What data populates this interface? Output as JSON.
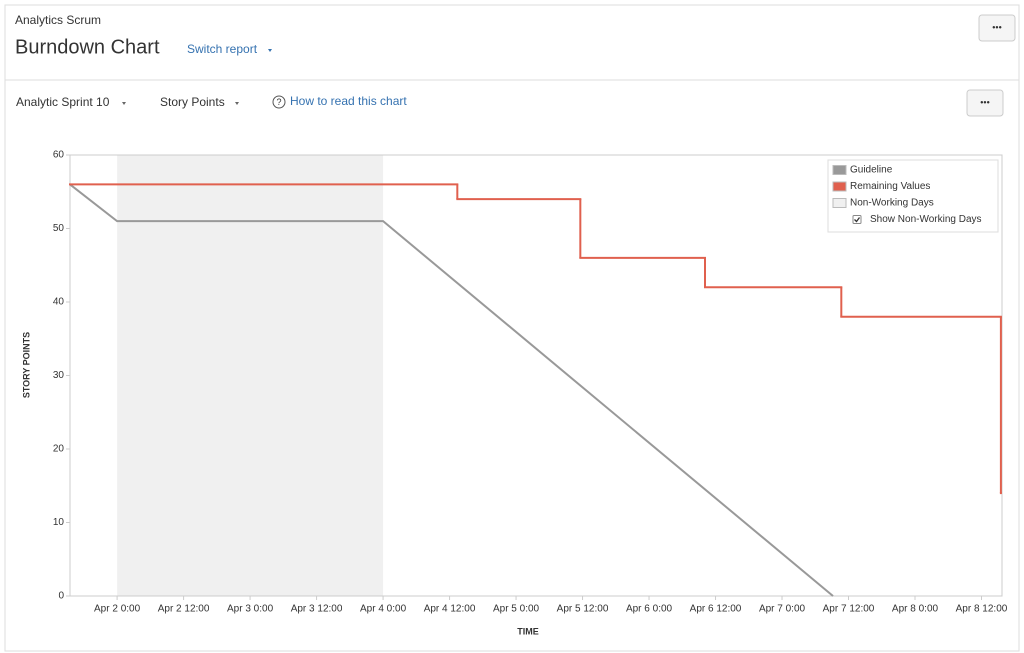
{
  "header": {
    "project": "Analytics Scrum",
    "title": "Burndown Chart",
    "switch": "Switch report",
    "more": "•••"
  },
  "toolbar": {
    "sprint": "Analytic Sprint 10",
    "statistic": "Story Points",
    "help_icon": "?",
    "help": "How to read this chart",
    "more": "•••"
  },
  "chart_data": {
    "type": "line",
    "x_label": "TIME",
    "y_label": "STORY POINTS",
    "xlim": [
      -8.5,
      159.7
    ],
    "xticks": [
      {
        "value": 0,
        "label": "Apr 2 0:00"
      },
      {
        "value": 12,
        "label": "Apr 2 12:00"
      },
      {
        "value": 24,
        "label": "Apr 3 0:00"
      },
      {
        "value": 36,
        "label": "Apr 3 12:00"
      },
      {
        "value": 48,
        "label": "Apr 4 0:00"
      },
      {
        "value": 60,
        "label": "Apr 4 12:00"
      },
      {
        "value": 72,
        "label": "Apr 5 0:00"
      },
      {
        "value": 84,
        "label": "Apr 5 12:00"
      },
      {
        "value": 96,
        "label": "Apr 6 0:00"
      },
      {
        "value": 108,
        "label": "Apr 6 12:00"
      },
      {
        "value": 120,
        "label": "Apr 7 0:00"
      },
      {
        "value": 132,
        "label": "Apr 7 12:00"
      },
      {
        "value": 144,
        "label": "Apr 8 0:00"
      },
      {
        "value": 156,
        "label": "Apr 8 12:00"
      }
    ],
    "ylim": [
      0,
      60
    ],
    "yticks": [
      0,
      10,
      20,
      30,
      40,
      50,
      60
    ],
    "grid": false,
    "non_working_days": {
      "name": "Non-Working Days",
      "color": "#f0f0f0",
      "ranges": [
        [
          0,
          48
        ]
      ]
    },
    "series": [
      {
        "name": "Guideline",
        "color": "#999999",
        "step": false,
        "x": [
          -8.5,
          0,
          48,
          129.2
        ],
        "values": [
          56,
          51,
          51,
          0
        ]
      },
      {
        "name": "Remaining Values",
        "color": "#e0604e",
        "step": true,
        "x": [
          -8.5,
          61.4,
          83.6,
          106.1,
          130.7,
          159.5
        ],
        "values": [
          56,
          54,
          46,
          42,
          38,
          14
        ]
      }
    ],
    "legend": "top-right",
    "legend_option": "Show Non-Working Days",
    "legend_option_checked": true
  }
}
